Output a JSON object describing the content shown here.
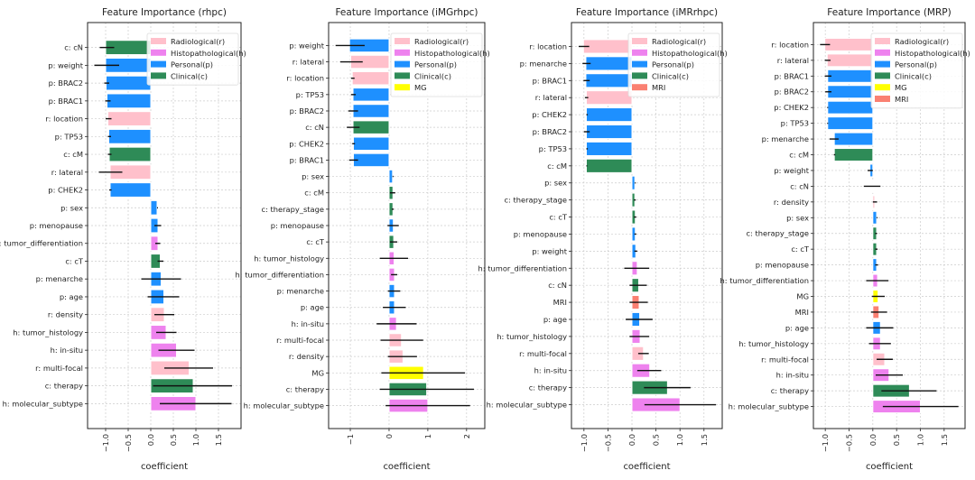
{
  "colors": {
    "r": "#ffc0cb",
    "h": "#ee82ee",
    "p": "#1e90ff",
    "c": "#2e8b57",
    "MG": "#ffff00",
    "MRI": "#fa8072"
  },
  "legend_labels": {
    "r": "Radiological(r)",
    "h": "Histopathological(h)",
    "p": "Personal(p)",
    "c": "Clinical(c)",
    "MG": "MG",
    "MRI": "MRI"
  },
  "chart_data": [
    {
      "type": "bar",
      "orientation": "horizontal",
      "title": "Feature Importance (rhpc)",
      "xlabel": "coefficient",
      "xlim": [
        -1.4,
        2.0
      ],
      "xticks": [
        -1.0,
        -0.5,
        0.0,
        0.5,
        1.0,
        1.5
      ],
      "xtick_labels": [
        "−1.0",
        "−0.5",
        "0.0",
        "0.5",
        "1.0",
        "1.5"
      ],
      "grid": true,
      "legend_placement": "top-right",
      "legend": [
        "r",
        "h",
        "p",
        "c"
      ],
      "bars": [
        {
          "label": "c: cN",
          "group": "c",
          "value": -1.0,
          "ci": [
            -1.13,
            -0.81
          ]
        },
        {
          "label": "p: weight",
          "group": "p",
          "value": -1.0,
          "ci": [
            -1.25,
            -0.7
          ]
        },
        {
          "label": "p: BRAC2",
          "group": "p",
          "value": -0.99,
          "ci": [
            -1.03,
            -0.92
          ]
        },
        {
          "label": "p: BRAC1",
          "group": "p",
          "value": -0.97,
          "ci": [
            -1.01,
            -0.89
          ]
        },
        {
          "label": "r: location",
          "group": "r",
          "value": -0.95,
          "ci": [
            -1.0,
            -0.87
          ]
        },
        {
          "label": "p: TP53",
          "group": "p",
          "value": -0.93,
          "ci": [
            -0.95,
            -0.88
          ]
        },
        {
          "label": "c: cM",
          "group": "c",
          "value": -0.92,
          "ci": [
            -0.95,
            -0.87
          ]
        },
        {
          "label": "r: lateral",
          "group": "r",
          "value": -0.9,
          "ci": [
            -1.15,
            -0.63
          ]
        },
        {
          "label": "p: CHEK2",
          "group": "p",
          "value": -0.9,
          "ci": [
            -0.92,
            -0.87
          ]
        },
        {
          "label": "p: sex",
          "group": "p",
          "value": 0.14,
          "ci": [
            0.14,
            0.14
          ]
        },
        {
          "label": "p: menopause",
          "group": "p",
          "value": 0.16,
          "ci": [
            0.08,
            0.23
          ]
        },
        {
          "label": "h: tumor_differentiation",
          "group": "h",
          "value": 0.16,
          "ci": [
            0.1,
            0.21
          ]
        },
        {
          "label": "c: cT",
          "group": "c",
          "value": 0.21,
          "ci": [
            0.15,
            0.28
          ]
        },
        {
          "label": "p: menarche",
          "group": "p",
          "value": 0.23,
          "ci": [
            -0.21,
            0.67
          ]
        },
        {
          "label": "p: age",
          "group": "p",
          "value": 0.29,
          "ci": [
            -0.07,
            0.63
          ]
        },
        {
          "label": "r: density",
          "group": "r",
          "value": 0.3,
          "ci": [
            0.08,
            0.52
          ]
        },
        {
          "label": "h: tumor_histology",
          "group": "h",
          "value": 0.34,
          "ci": [
            0.12,
            0.57
          ]
        },
        {
          "label": "h: in-situ",
          "group": "h",
          "value": 0.57,
          "ci": [
            0.17,
            0.97
          ]
        },
        {
          "label": "r: multi-focal",
          "group": "r",
          "value": 0.85,
          "ci": [
            0.3,
            1.38
          ]
        },
        {
          "label": "c: therapy",
          "group": "c",
          "value": 0.94,
          "ci": [
            0.05,
            1.8
          ]
        },
        {
          "label": "h: molecular_subtype",
          "group": "h",
          "value": 1.0,
          "ci": [
            0.2,
            1.79
          ]
        }
      ]
    },
    {
      "type": "bar",
      "orientation": "horizontal",
      "title": "Feature Importance (iMGrhpc)",
      "xlabel": "coefficient",
      "xlim": [
        -1.56,
        2.47
      ],
      "xticks": [
        -1,
        0,
        1,
        2
      ],
      "xtick_labels": [
        "−1",
        "0",
        "1",
        "2"
      ],
      "grid": true,
      "legend_placement": "top-right",
      "legend": [
        "r",
        "h",
        "p",
        "c",
        "MG"
      ],
      "bars": [
        {
          "label": "p: weight",
          "group": "p",
          "value": -1.02,
          "ci": [
            -1.38,
            -0.63
          ]
        },
        {
          "label": "r: lateral",
          "group": "r",
          "value": -0.99,
          "ci": [
            -1.26,
            -0.68
          ]
        },
        {
          "label": "r: location",
          "group": "r",
          "value": -0.95,
          "ci": [
            -0.98,
            -0.89
          ]
        },
        {
          "label": "p: TP53",
          "group": "p",
          "value": -0.93,
          "ci": [
            -0.98,
            -0.86
          ]
        },
        {
          "label": "p: BRAC2",
          "group": "p",
          "value": -0.93,
          "ci": [
            -1.05,
            -0.8
          ]
        },
        {
          "label": "c: cN",
          "group": "c",
          "value": -0.93,
          "ci": [
            -1.09,
            -0.76
          ]
        },
        {
          "label": "p: CHEK2",
          "group": "p",
          "value": -0.92,
          "ci": [
            -0.95,
            -0.88
          ]
        },
        {
          "label": "p: BRAC1",
          "group": "p",
          "value": -0.92,
          "ci": [
            -1.03,
            -0.8
          ]
        },
        {
          "label": "p: sex",
          "group": "p",
          "value": 0.09,
          "ci": [
            0.09,
            0.09
          ]
        },
        {
          "label": "c: cM",
          "group": "c",
          "value": 0.1,
          "ci": [
            0.02,
            0.16
          ]
        },
        {
          "label": "c: therapy_stage",
          "group": "c",
          "value": 0.1,
          "ci": [
            0.07,
            0.12
          ]
        },
        {
          "label": "p: menopause",
          "group": "p",
          "value": 0.11,
          "ci": [
            -0.04,
            0.25
          ]
        },
        {
          "label": "c: cT",
          "group": "c",
          "value": 0.12,
          "ci": [
            0.02,
            0.21
          ]
        },
        {
          "label": "h: tumor_histology",
          "group": "h",
          "value": 0.13,
          "ci": [
            -0.24,
            0.49
          ]
        },
        {
          "label": "h: tumor_differentiation",
          "group": "h",
          "value": 0.14,
          "ci": [
            0.05,
            0.21
          ]
        },
        {
          "label": "p: menarche",
          "group": "p",
          "value": 0.14,
          "ci": [
            -0.03,
            0.29
          ]
        },
        {
          "label": "p: age",
          "group": "p",
          "value": 0.14,
          "ci": [
            -0.16,
            0.43
          ]
        },
        {
          "label": "h: in-situ",
          "group": "h",
          "value": 0.19,
          "ci": [
            -0.32,
            0.71
          ]
        },
        {
          "label": "r: multi-focal",
          "group": "r",
          "value": 0.32,
          "ci": [
            -0.22,
            0.88
          ]
        },
        {
          "label": "r: density",
          "group": "r",
          "value": 0.36,
          "ci": [
            -0.03,
            0.72
          ]
        },
        {
          "label": "MG",
          "group": "MG",
          "value": 0.89,
          "ci": [
            -0.2,
            1.96
          ]
        },
        {
          "label": "c: therapy",
          "group": "c",
          "value": 0.97,
          "ci": [
            -0.24,
            2.19
          ]
        },
        {
          "label": "h: molecular_subtype",
          "group": "h",
          "value": 1.0,
          "ci": [
            -0.09,
            2.09
          ]
        }
      ]
    },
    {
      "type": "bar",
      "orientation": "horizontal",
      "title": "Feature Importance (iMRrhpc)",
      "xlabel": "coefficient",
      "xlim": [
        -1.26,
        1.88
      ],
      "xticks": [
        -1.0,
        -0.5,
        0.0,
        0.5,
        1.0,
        1.5
      ],
      "xtick_labels": [
        "−1.0",
        "−0.5",
        "0.0",
        "0.5",
        "1.0",
        "1.5"
      ],
      "grid": true,
      "legend_placement": "top-right",
      "legend": [
        "r",
        "h",
        "p",
        "c",
        "MRI"
      ],
      "bars": [
        {
          "label": "r: location",
          "group": "r",
          "value": -1.01,
          "ci": [
            -1.11,
            -0.89
          ]
        },
        {
          "label": "p: menarche",
          "group": "p",
          "value": -0.96,
          "ci": [
            -1.03,
            -0.86
          ]
        },
        {
          "label": "p: BRAC1",
          "group": "p",
          "value": -0.96,
          "ci": [
            -1.01,
            -0.88
          ]
        },
        {
          "label": "r: lateral",
          "group": "r",
          "value": -0.95,
          "ci": [
            -0.98,
            -0.91
          ]
        },
        {
          "label": "p: CHEK2",
          "group": "p",
          "value": -0.95,
          "ci": [
            -0.95,
            -0.92
          ]
        },
        {
          "label": "p: BRAC2",
          "group": "p",
          "value": -0.95,
          "ci": [
            -1.0,
            -0.88
          ]
        },
        {
          "label": "p: TP53",
          "group": "p",
          "value": -0.95,
          "ci": [
            -0.95,
            -0.92
          ]
        },
        {
          "label": "c: cM",
          "group": "c",
          "value": -0.95,
          "ci": [
            -0.95,
            -0.95
          ]
        },
        {
          "label": "p: sex",
          "group": "p",
          "value": 0.06,
          "ci": [
            0.06,
            0.06
          ]
        },
        {
          "label": "c: therapy_stage",
          "group": "c",
          "value": 0.06,
          "ci": [
            0.04,
            0.08
          ]
        },
        {
          "label": "c: cT",
          "group": "c",
          "value": 0.07,
          "ci": [
            0.04,
            0.09
          ]
        },
        {
          "label": "p: menopause",
          "group": "p",
          "value": 0.07,
          "ci": [
            0.05,
            0.09
          ]
        },
        {
          "label": "p: weight",
          "group": "p",
          "value": 0.08,
          "ci": [
            0.05,
            0.11
          ]
        },
        {
          "label": "h: tumor_differentiation",
          "group": "h",
          "value": 0.11,
          "ci": [
            -0.16,
            0.36
          ]
        },
        {
          "label": "c: cN",
          "group": "c",
          "value": 0.14,
          "ci": [
            -0.05,
            0.31
          ]
        },
        {
          "label": "MRI",
          "group": "MRI",
          "value": 0.15,
          "ci": [
            -0.05,
            0.33
          ]
        },
        {
          "label": "p: age",
          "group": "p",
          "value": 0.16,
          "ci": [
            -0.13,
            0.43
          ]
        },
        {
          "label": "h: tumor_histology",
          "group": "h",
          "value": 0.17,
          "ci": [
            -0.05,
            0.36
          ]
        },
        {
          "label": "r: multi-focal",
          "group": "r",
          "value": 0.24,
          "ci": [
            0.13,
            0.35
          ]
        },
        {
          "label": "h: in-situ",
          "group": "h",
          "value": 0.37,
          "ci": [
            0.11,
            0.61
          ]
        },
        {
          "label": "c: therapy",
          "group": "c",
          "value": 0.74,
          "ci": [
            0.25,
            1.22
          ]
        },
        {
          "label": "h: molecular_subtype",
          "group": "h",
          "value": 1.0,
          "ci": [
            0.26,
            1.75
          ]
        }
      ]
    },
    {
      "type": "bar",
      "orientation": "horizontal",
      "title": "Feature Importance (MRP)",
      "xlabel": "coefficient",
      "xlim": [
        -1.25,
        1.94
      ],
      "xticks": [
        -1.0,
        -0.5,
        0.0,
        0.5,
        1.0,
        1.5
      ],
      "xtick_labels": [
        "−1.0",
        "−0.5",
        "0.0",
        "0.5",
        "1.0",
        "1.5"
      ],
      "grid": true,
      "legend_placement": "top-right",
      "legend": [
        "r",
        "h",
        "p",
        "c",
        "MG",
        "MRI"
      ],
      "bars": [
        {
          "label": "r: location",
          "group": "r",
          "value": -1.01,
          "ci": [
            -1.11,
            -0.9
          ]
        },
        {
          "label": "r: lateral",
          "group": "r",
          "value": -0.96,
          "ci": [
            -1.01,
            -0.89
          ]
        },
        {
          "label": "p: BRAC1",
          "group": "p",
          "value": -0.95,
          "ci": [
            -1.01,
            -0.87
          ]
        },
        {
          "label": "p: BRAC2",
          "group": "p",
          "value": -0.95,
          "ci": [
            -1.0,
            -0.87
          ]
        },
        {
          "label": "p: CHEK2",
          "group": "p",
          "value": -0.95,
          "ci": [
            -0.96,
            -0.94
          ]
        },
        {
          "label": "p: TP53",
          "group": "p",
          "value": -0.95,
          "ci": [
            -0.96,
            -0.94
          ]
        },
        {
          "label": "p: menarche",
          "group": "p",
          "value": -0.81,
          "ci": [
            -0.91,
            -0.72
          ]
        },
        {
          "label": "c: cM",
          "group": "c",
          "value": -0.81,
          "ci": [
            -0.82,
            -0.79
          ]
        },
        {
          "label": "p: weight",
          "group": "p",
          "value": -0.06,
          "ci": [
            -0.11,
            0.0
          ]
        },
        {
          "label": "c: cN",
          "group": "c",
          "value": 0.005,
          "ci": [
            -0.19,
            0.16
          ]
        },
        {
          "label": "r: density",
          "group": "r",
          "value": 0.04,
          "ci": [
            0.0,
            0.09
          ]
        },
        {
          "label": "p: sex",
          "group": "p",
          "value": 0.08,
          "ci": [
            0.08,
            0.08
          ]
        },
        {
          "label": "c: therapy_stage",
          "group": "c",
          "value": 0.08,
          "ci": [
            0.05,
            0.09
          ]
        },
        {
          "label": "c: cT",
          "group": "c",
          "value": 0.08,
          "ci": [
            0.05,
            0.1
          ]
        },
        {
          "label": "p: menopause",
          "group": "p",
          "value": 0.08,
          "ci": [
            0.05,
            0.11
          ]
        },
        {
          "label": "h: tumor_differentiation",
          "group": "h",
          "value": 0.1,
          "ci": [
            -0.14,
            0.33
          ]
        },
        {
          "label": "MG",
          "group": "MG",
          "value": 0.11,
          "ci": [
            -0.02,
            0.25
          ]
        },
        {
          "label": "MRI",
          "group": "MRI",
          "value": 0.13,
          "ci": [
            -0.04,
            0.3
          ]
        },
        {
          "label": "p: age",
          "group": "p",
          "value": 0.16,
          "ci": [
            -0.14,
            0.43
          ]
        },
        {
          "label": "h: tumor_histology",
          "group": "h",
          "value": 0.16,
          "ci": [
            -0.08,
            0.38
          ]
        },
        {
          "label": "r: multi-focal",
          "group": "r",
          "value": 0.25,
          "ci": [
            0.08,
            0.42
          ]
        },
        {
          "label": "h: in-situ",
          "group": "h",
          "value": 0.34,
          "ci": [
            0.06,
            0.63
          ]
        },
        {
          "label": "c: therapy",
          "group": "c",
          "value": 0.77,
          "ci": [
            0.18,
            1.34
          ]
        },
        {
          "label": "h: molecular_subtype",
          "group": "h",
          "value": 1.0,
          "ci": [
            0.21,
            1.8
          ]
        }
      ]
    }
  ]
}
